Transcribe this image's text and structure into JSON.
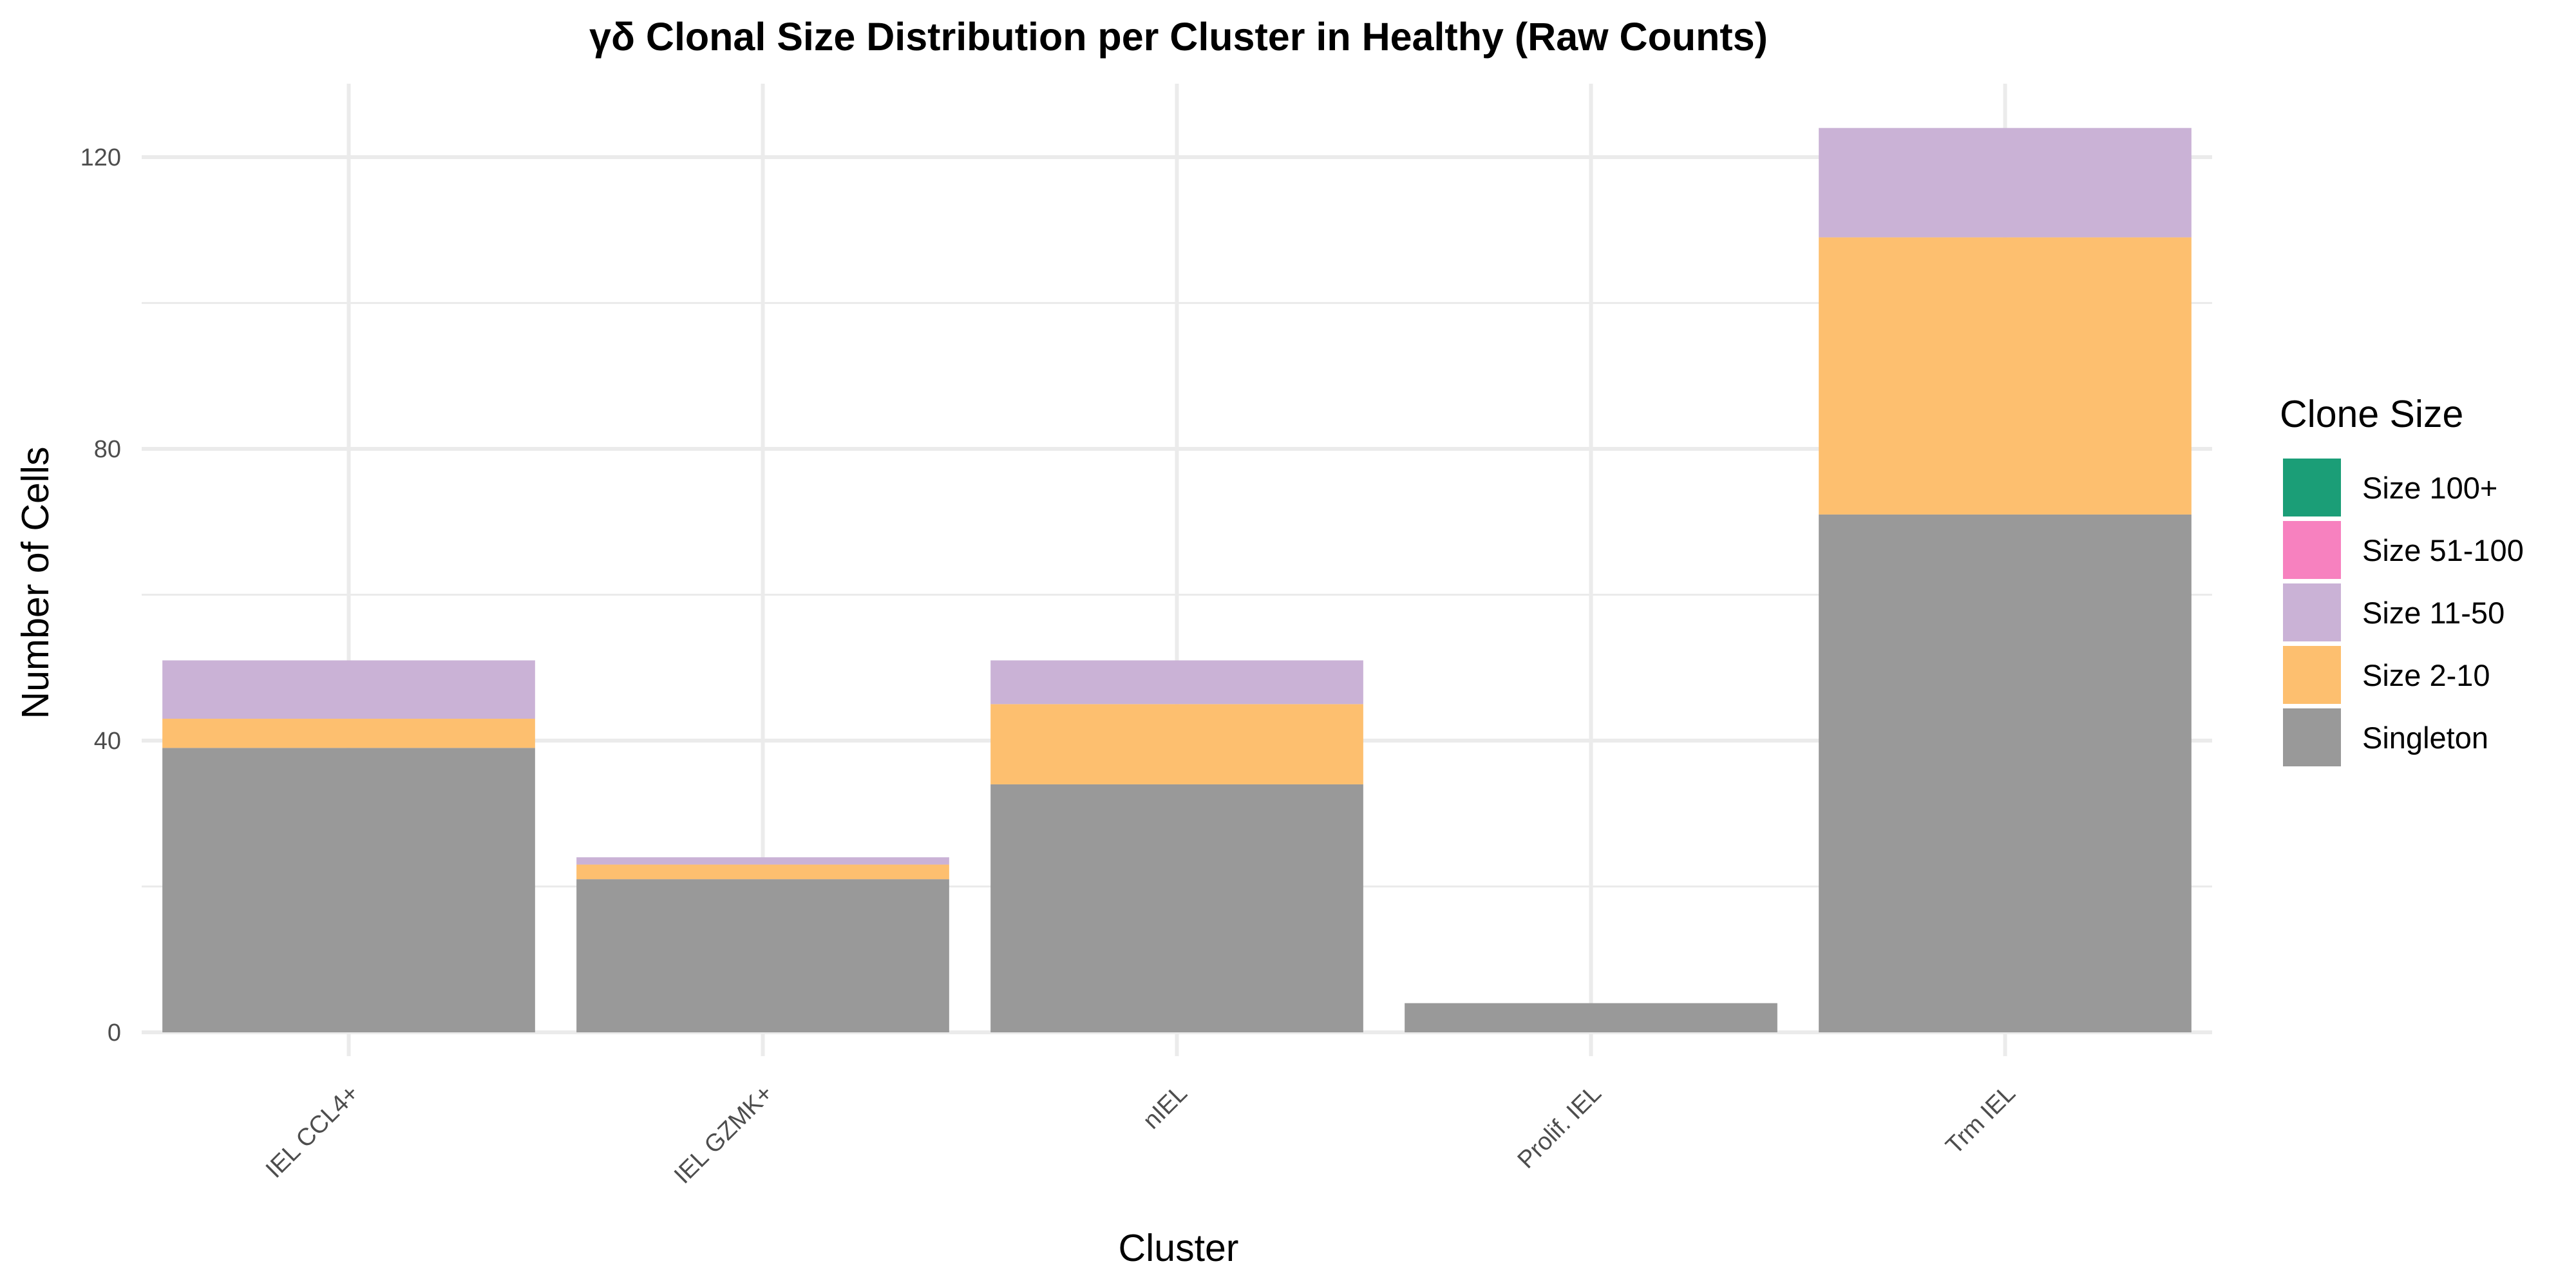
{
  "chart_data": {
    "type": "bar",
    "stacked": true,
    "title": "γδ Clonal Size Distribution per Cluster in Healthy (Raw Counts)",
    "xlabel": "Cluster",
    "ylabel": "Number of Cells",
    "categories": [
      "IEL CCL4+",
      "IEL GZMK+",
      "nIEL",
      "Prolif. IEL",
      "Trm IEL"
    ],
    "ylim": [
      0,
      130
    ],
    "yticks": [
      0,
      40,
      80,
      120
    ],
    "grid": true,
    "legend": {
      "title": "Clone Size",
      "position": "right",
      "entries": [
        "Size 100+",
        "Size 51-100",
        "Size 11-50",
        "Size 2-10",
        "Singleton"
      ]
    },
    "series": [
      {
        "name": "Singleton",
        "color": "#999999",
        "values": [
          39,
          21,
          34,
          4,
          71
        ]
      },
      {
        "name": "Size 2-10",
        "color": "#FDBF6F",
        "values": [
          4,
          2,
          11,
          0,
          38
        ]
      },
      {
        "name": "Size 11-50",
        "color": "#CAB2D6",
        "values": [
          8,
          1,
          6,
          0,
          15
        ]
      },
      {
        "name": "Size 51-100",
        "color": "#F781BF",
        "values": [
          0,
          0,
          0,
          0,
          0
        ]
      },
      {
        "name": "Size 100+",
        "color": "#1B9E77",
        "values": [
          0,
          0,
          0,
          0,
          0
        ]
      }
    ]
  }
}
